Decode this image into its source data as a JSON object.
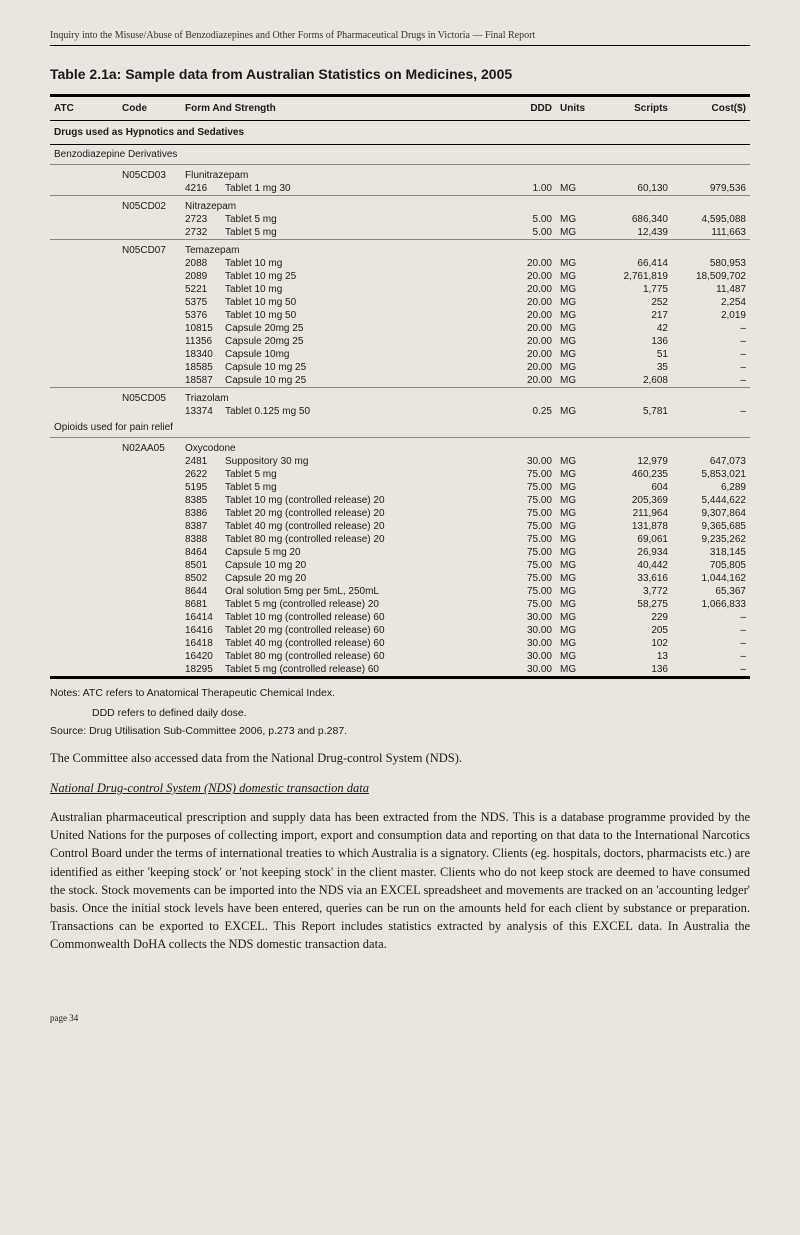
{
  "header": "Inquiry into the Misuse/Abuse of Benzodiazepines and Other Forms of Pharmaceutical Drugs in Victoria — Final Report",
  "tableTitle": "Table 2.1a: Sample data from Australian Statistics on Medicines, 2005",
  "columns": {
    "atc": "ATC",
    "code": "Code",
    "form": "Form And Strength",
    "ddd": "DDD",
    "units": "Units",
    "scripts": "Scripts",
    "cost": "Cost($)"
  },
  "sectionA": "Drugs used as Hypnotics and Sedatives",
  "subsectionA": "Benzodiazepine Derivatives",
  "groups": [
    {
      "code": "N05CD03",
      "drug": "Flunitrazepam",
      "rows": [
        {
          "c": "4216",
          "f": "Tablet 1 mg 30",
          "ddd": "1.00",
          "u": "MG",
          "s": "60,130",
          "cost": "979,536"
        }
      ]
    },
    {
      "code": "N05CD02",
      "drug": "Nitrazepam",
      "rows": [
        {
          "c": "2723",
          "f": "Tablet 5 mg",
          "ddd": "5.00",
          "u": "MG",
          "s": "686,340",
          "cost": "4,595,088"
        },
        {
          "c": "2732",
          "f": "Tablet 5 mg",
          "ddd": "5.00",
          "u": "MG",
          "s": "12,439",
          "cost": "111,663"
        }
      ]
    },
    {
      "code": "N05CD07",
      "drug": "Temazepam",
      "rows": [
        {
          "c": "2088",
          "f": "Tablet 10 mg",
          "ddd": "20.00",
          "u": "MG",
          "s": "66,414",
          "cost": "580,953"
        },
        {
          "c": "2089",
          "f": "Tablet 10 mg 25",
          "ddd": "20.00",
          "u": "MG",
          "s": "2,761,819",
          "cost": "18,509,702"
        },
        {
          "c": "5221",
          "f": "Tablet 10 mg",
          "ddd": "20.00",
          "u": "MG",
          "s": "1,775",
          "cost": "11,487"
        },
        {
          "c": "5375",
          "f": "Tablet 10 mg 50",
          "ddd": "20.00",
          "u": "MG",
          "s": "252",
          "cost": "2,254"
        },
        {
          "c": "5376",
          "f": "Tablet 10 mg 50",
          "ddd": "20.00",
          "u": "MG",
          "s": "217",
          "cost": "2,019"
        },
        {
          "c": "10815",
          "f": "Capsule 20mg 25",
          "ddd": "20.00",
          "u": "MG",
          "s": "42",
          "cost": "–"
        },
        {
          "c": "11356",
          "f": "Capsule 20mg 25",
          "ddd": "20.00",
          "u": "MG",
          "s": "136",
          "cost": "–"
        },
        {
          "c": "18340",
          "f": "Capsule 10mg",
          "ddd": "20.00",
          "u": "MG",
          "s": "51",
          "cost": "–"
        },
        {
          "c": "18585",
          "f": "Capsule 10 mg 25",
          "ddd": "20.00",
          "u": "MG",
          "s": "35",
          "cost": "–"
        },
        {
          "c": "18587",
          "f": "Capsule 10 mg 25",
          "ddd": "20.00",
          "u": "MG",
          "s": "2,608",
          "cost": "–"
        }
      ]
    },
    {
      "code": "N05CD05",
      "drug": "Triazolam",
      "rows": [
        {
          "c": "13374",
          "f": "Tablet 0.125 mg 50",
          "ddd": "0.25",
          "u": "MG",
          "s": "5,781",
          "cost": "–"
        }
      ]
    }
  ],
  "subsectionB": "Opioids used for pain relief",
  "groupsB": [
    {
      "code": "N02AA05",
      "drug": "Oxycodone",
      "rows": [
        {
          "c": "2481",
          "f": "Suppository 30 mg",
          "ddd": "30.00",
          "u": "MG",
          "s": "12,979",
          "cost": "647,073"
        },
        {
          "c": "2622",
          "f": "Tablet 5 mg",
          "ddd": "75.00",
          "u": "MG",
          "s": "460,235",
          "cost": "5,853,021"
        },
        {
          "c": "5195",
          "f": "Tablet 5 mg",
          "ddd": "75.00",
          "u": "MG",
          "s": "604",
          "cost": "6,289"
        },
        {
          "c": "8385",
          "f": "Tablet 10 mg (controlled release) 20",
          "ddd": "75.00",
          "u": "MG",
          "s": "205,369",
          "cost": "5,444,622"
        },
        {
          "c": "8386",
          "f": "Tablet 20 mg (controlled release) 20",
          "ddd": "75.00",
          "u": "MG",
          "s": "211,964",
          "cost": "9,307,864"
        },
        {
          "c": "8387",
          "f": "Tablet 40 mg (controlled release) 20",
          "ddd": "75.00",
          "u": "MG",
          "s": "131,878",
          "cost": "9,365,685"
        },
        {
          "c": "8388",
          "f": "Tablet 80 mg (controlled release) 20",
          "ddd": "75.00",
          "u": "MG",
          "s": "69,061",
          "cost": "9,235,262"
        },
        {
          "c": "8464",
          "f": "Capsule 5 mg 20",
          "ddd": "75.00",
          "u": "MG",
          "s": "26,934",
          "cost": "318,145"
        },
        {
          "c": "8501",
          "f": "Capsule 10 mg 20",
          "ddd": "75.00",
          "u": "MG",
          "s": "40,442",
          "cost": "705,805"
        },
        {
          "c": "8502",
          "f": "Capsule 20 mg 20",
          "ddd": "75.00",
          "u": "MG",
          "s": "33,616",
          "cost": "1,044,162"
        },
        {
          "c": "8644",
          "f": "Oral solution 5mg per 5mL, 250mL",
          "ddd": "75.00",
          "u": "MG",
          "s": "3,772",
          "cost": "65,367"
        },
        {
          "c": "8681",
          "f": "Tablet 5 mg (controlled release) 20",
          "ddd": "75.00",
          "u": "MG",
          "s": "58,275",
          "cost": "1,066,833"
        },
        {
          "c": "16414",
          "f": "Tablet 10 mg (controlled release) 60",
          "ddd": "30.00",
          "u": "MG",
          "s": "229",
          "cost": "–"
        },
        {
          "c": "16416",
          "f": "Tablet 20 mg (controlled release) 60",
          "ddd": "30.00",
          "u": "MG",
          "s": "205",
          "cost": "–"
        },
        {
          "c": "16418",
          "f": "Tablet 40 mg (controlled release) 60",
          "ddd": "30.00",
          "u": "MG",
          "s": "102",
          "cost": "–"
        },
        {
          "c": "16420",
          "f": "Tablet 80 mg (controlled release) 60",
          "ddd": "30.00",
          "u": "MG",
          "s": "13",
          "cost": "–"
        },
        {
          "c": "18295",
          "f": "Tablet 5 mg (controlled release) 60",
          "ddd": "30.00",
          "u": "MG",
          "s": "136",
          "cost": "–"
        }
      ]
    }
  ],
  "notes1": "Notes:  ATC  refers to Anatomical Therapeutic Chemical Index.",
  "notes2": "DDD refers to defined daily dose.",
  "source": "Source: Drug Utilisation Sub-Committee 2006, p.273 and p.287.",
  "para1": "The Committee also accessed data from the National Drug-control System (NDS).",
  "subhead": "National Drug-control System (NDS) domestic transaction data",
  "para2": "Australian pharmaceutical prescription and supply data has been extracted from the NDS. This is a database programme provided by the United Nations for the purposes of collecting import, export and consumption data and reporting on that data to the International Narcotics Control Board under the terms of international treaties to which Australia is a signatory. Clients (eg. hospitals, doctors, pharmacists etc.) are identified as either 'keeping stock' or 'not keeping stock' in the client master. Clients who do not keep stock are deemed to have consumed the stock. Stock movements can be imported into the NDS via an EXCEL spreadsheet and movements are tracked on an 'accounting ledger' basis. Once the initial stock levels have been entered, queries can be run on the amounts held for each client by substance or preparation. Transactions can be exported to EXCEL. This Report includes statistics extracted by analysis of this EXCEL data. In Australia the Commonwealth DoHA collects the NDS domestic transaction data.",
  "footer": "page 34"
}
